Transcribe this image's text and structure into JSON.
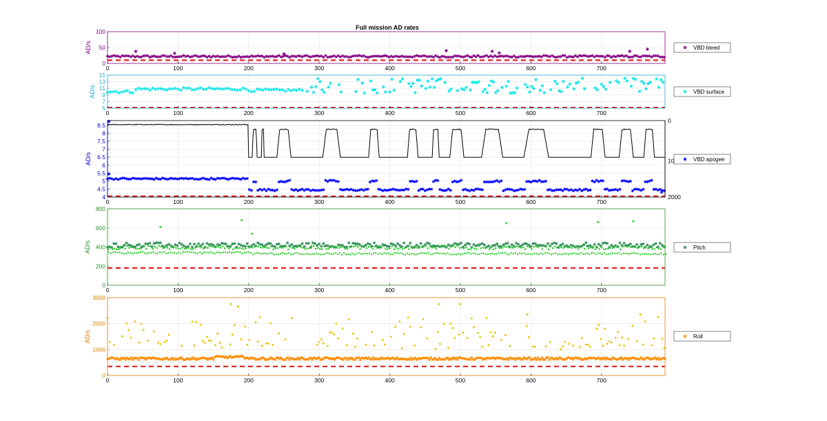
{
  "figure": {
    "title": "Full mission AD rates"
  },
  "chart_data": [
    {
      "type": "scatter",
      "panel": "bleed",
      "xlim": [
        0,
        790
      ],
      "ylim": [
        0,
        100
      ],
      "xticks": [
        0,
        100,
        200,
        300,
        400,
        500,
        600,
        700
      ],
      "yticks": [
        0,
        50,
        100
      ],
      "ylabel": "AD/s",
      "grid": true,
      "legend": "right",
      "colors": {
        "axis": "#800080",
        "marker": "#800080",
        "threshold": "#e02020"
      },
      "threshold": 10,
      "series": [
        {
          "name": "VBD bleed",
          "marker": "asterisk",
          "base": 22,
          "spread": 6,
          "spikes": [
            [
              40,
              38
            ],
            [
              95,
              32
            ],
            [
              250,
              30
            ],
            [
              480,
              40
            ],
            [
              545,
              38
            ],
            [
              555,
              33
            ],
            [
              740,
              38
            ],
            [
              765,
              45
            ]
          ]
        }
      ]
    },
    {
      "type": "scatter",
      "panel": "surface",
      "xlim": [
        0,
        790
      ],
      "ylim": [
        5,
        15
      ],
      "xticks": [
        0,
        100,
        200,
        300,
        400,
        500,
        600,
        700
      ],
      "yticks": [
        5,
        7,
        9,
        11,
        13,
        15
      ],
      "ylabel": "AD/s",
      "grid": true,
      "legend": "right",
      "colors": {
        "axis": "#2aa7c9",
        "marker": "#00e5e5",
        "threshold": "#e02020"
      },
      "threshold": 5.2,
      "series": [
        {
          "name": "VBD surface",
          "marker": "asterisk",
          "segments": [
            [
              0,
              40,
              10
            ],
            [
              40,
              200,
              10.8
            ],
            [
              200,
              280,
              10.4
            ],
            [
              280,
              790,
              11.8
            ]
          ]
        }
      ]
    },
    {
      "type": "line",
      "panel": "apogee",
      "xlim": [
        0,
        790
      ],
      "ylim": [
        4,
        8.8
      ],
      "xticks": [
        0,
        100,
        200,
        300,
        400,
        500,
        600,
        700
      ],
      "yticks": [
        4,
        4.5,
        5,
        5.5,
        6,
        6.5,
        7,
        7.5,
        8,
        8.5
      ],
      "ylabel": "AD/s",
      "y2ticks": [
        "0",
        "10",
        "2000"
      ],
      "grid": true,
      "legend": "right",
      "colors": {
        "axis": "#0000cd",
        "marker": "#0000ff",
        "line": "#000000",
        "threshold": "#e02020"
      },
      "threshold": 4.05,
      "series": [
        {
          "name": "VBD apogee",
          "marker": "asterisk",
          "base": 4.45,
          "high": 5.0,
          "early": 5.15
        }
      ],
      "depth_profile": {
        "early_level": 8.55,
        "low_level": 6.5,
        "high_level": 8.25,
        "dives": [
          [
            205,
            212
          ],
          [
            218,
            222
          ],
          [
            240,
            260
          ],
          [
            305,
            330
          ],
          [
            370,
            385
          ],
          [
            425,
            440
          ],
          [
            460,
            470
          ],
          [
            485,
            505
          ],
          [
            530,
            560
          ],
          [
            590,
            625
          ],
          [
            685,
            705
          ],
          [
            725,
            745
          ],
          [
            760,
            775
          ]
        ]
      }
    },
    {
      "type": "scatter",
      "panel": "pitch",
      "xlim": [
        0,
        790
      ],
      "ylim": [
        0,
        800
      ],
      "xticks": [
        0,
        100,
        200,
        300,
        400,
        500,
        600,
        700
      ],
      "yticks": [
        0,
        200,
        400,
        600,
        800
      ],
      "ylabel": "AD/s",
      "grid": true,
      "legend": "right",
      "colors": {
        "axis": "#2e8b2e",
        "marker": "#2e8b57",
        "light": "#32cd32",
        "threshold": "#e02020"
      },
      "threshold": 180,
      "series": [
        {
          "name": "Pitch",
          "marker": "asterisk",
          "bands": [
            420,
            395,
            330
          ],
          "spikes": [
            [
              75,
              610
            ],
            [
              190,
              680
            ],
            [
              205,
              540
            ],
            [
              565,
              650
            ],
            [
              695,
              660
            ],
            [
              745,
              670
            ]
          ]
        }
      ]
    },
    {
      "type": "scatter",
      "panel": "roll",
      "xlim": [
        0,
        790
      ],
      "ylim": [
        0,
        3000
      ],
      "xticks": [
        0,
        100,
        200,
        300,
        400,
        500,
        600,
        700
      ],
      "yticks": [
        0,
        1000,
        2000,
        3000
      ],
      "ylabel": "AD/s",
      "grid": true,
      "legend": "right",
      "colors": {
        "axis": "#e07b00",
        "marker": "#ff8c00",
        "dots": "#e6c200",
        "threshold": "#e02020"
      },
      "threshold": 350,
      "series": [
        {
          "name": "Roll",
          "marker": "asterisk",
          "base": 650,
          "dot_range": [
            1000,
            2800
          ]
        }
      ]
    }
  ]
}
